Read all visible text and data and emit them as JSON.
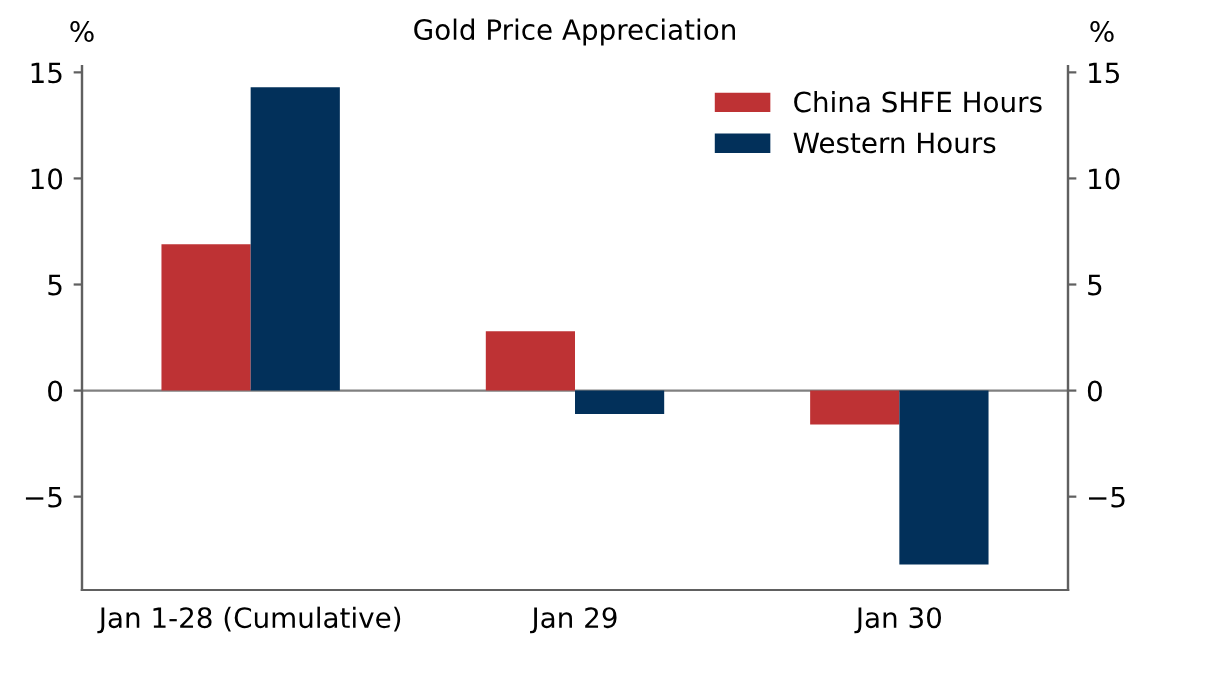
{
  "chart_data": {
    "type": "bar",
    "title": "Gold Price Appreciation",
    "ylabel": "%",
    "y2label": "%",
    "categories": [
      "Jan 1-28 (Cumulative)",
      "Jan 29",
      "Jan 30"
    ],
    "series": [
      {
        "name": "China SHFE Hours",
        "color": "#be3234",
        "values": [
          6.9,
          2.8,
          -1.6
        ]
      },
      {
        "name": "Western Hours",
        "color": "#02305a",
        "values": [
          14.3,
          -1.1,
          -8.2
        ]
      }
    ],
    "ylim": [
      -9.4,
      15.3
    ],
    "yticks": [
      {
        "value": -5,
        "label": "−5"
      },
      0,
      5,
      10,
      15
    ],
    "y2lim": [
      -9.4,
      15.3
    ],
    "y2ticks": [
      {
        "value": -5,
        "label": "−5"
      },
      0,
      5,
      10,
      15
    ],
    "ref_lines": [
      {
        "axis": "y",
        "value": 0,
        "color": "#808080"
      }
    ],
    "legend": "top right",
    "grid": false
  }
}
